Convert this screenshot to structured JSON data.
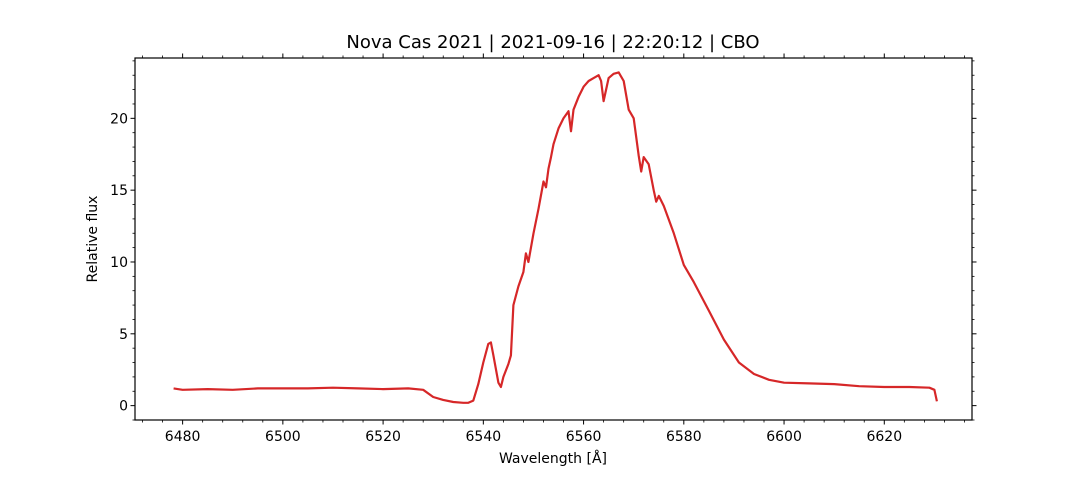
{
  "chart_data": {
    "type": "line",
    "title": "Nova Cas 2021 | 2021-09-16 | 22:20:12 | CBO",
    "xlabel": "Wavelength [Å]",
    "ylabel": "Relative flux",
    "xlim": [
      6470.5,
      6637.5
    ],
    "ylim": [
      -1.0,
      24.2
    ],
    "xticks": [
      6480,
      6500,
      6520,
      6540,
      6560,
      6580,
      6600,
      6620
    ],
    "xtick_labels": [
      "6480",
      "6500",
      "6520",
      "6540",
      "6560",
      "6580",
      "6600",
      "6620"
    ],
    "yticks": [
      0,
      5,
      10,
      15,
      20
    ],
    "ytick_labels": [
      "0",
      "5",
      "10",
      "15",
      "20"
    ],
    "grid": false,
    "series": [
      {
        "color": "#d62728",
        "x": [
          6478.2,
          6480,
          6485,
          6490,
          6495,
          6500,
          6505,
          6510,
          6515,
          6520,
          6525,
          6528,
          6530,
          6532,
          6534,
          6536,
          6537,
          6538,
          6539,
          6540,
          6541,
          6541.5,
          6542,
          6543,
          6543.5,
          6544,
          6545,
          6545.5,
          6546,
          6547,
          6548,
          6548.5,
          6549,
          6550,
          6551,
          6552,
          6552.5,
          6553,
          6553.5,
          6554,
          6555,
          6556,
          6557,
          6557.5,
          6558,
          6559,
          6560,
          6561,
          6562,
          6563,
          6563.5,
          6564,
          6565,
          6566,
          6567,
          6568,
          6569,
          6570,
          6571,
          6571.5,
          6572,
          6573,
          6574,
          6574.5,
          6575,
          6576,
          6578,
          6580,
          6582,
          6585,
          6588,
          6591,
          6594,
          6597,
          6600,
          6605,
          6610,
          6615,
          6620,
          6625,
          6629,
          6630,
          6630.5
        ],
        "y": [
          1.2,
          1.1,
          1.15,
          1.1,
          1.2,
          1.2,
          1.2,
          1.25,
          1.2,
          1.15,
          1.2,
          1.1,
          0.6,
          0.4,
          0.25,
          0.2,
          0.2,
          0.35,
          1.5,
          3.0,
          4.3,
          4.4,
          3.5,
          1.6,
          1.3,
          2.0,
          2.9,
          3.5,
          7.0,
          8.3,
          9.3,
          10.6,
          10.0,
          12.0,
          13.7,
          15.6,
          15.2,
          16.5,
          17.3,
          18.2,
          19.3,
          20.0,
          20.5,
          19.1,
          20.6,
          21.5,
          22.2,
          22.6,
          22.8,
          23.0,
          22.6,
          21.2,
          22.8,
          23.1,
          23.2,
          22.6,
          20.6,
          20.0,
          17.4,
          16.3,
          17.3,
          16.8,
          15.0,
          14.2,
          14.6,
          13.9,
          12.0,
          9.8,
          8.6,
          6.6,
          4.6,
          3.0,
          2.2,
          1.8,
          1.6,
          1.55,
          1.5,
          1.35,
          1.3,
          1.3,
          1.25,
          1.1,
          0.3
        ]
      }
    ]
  }
}
